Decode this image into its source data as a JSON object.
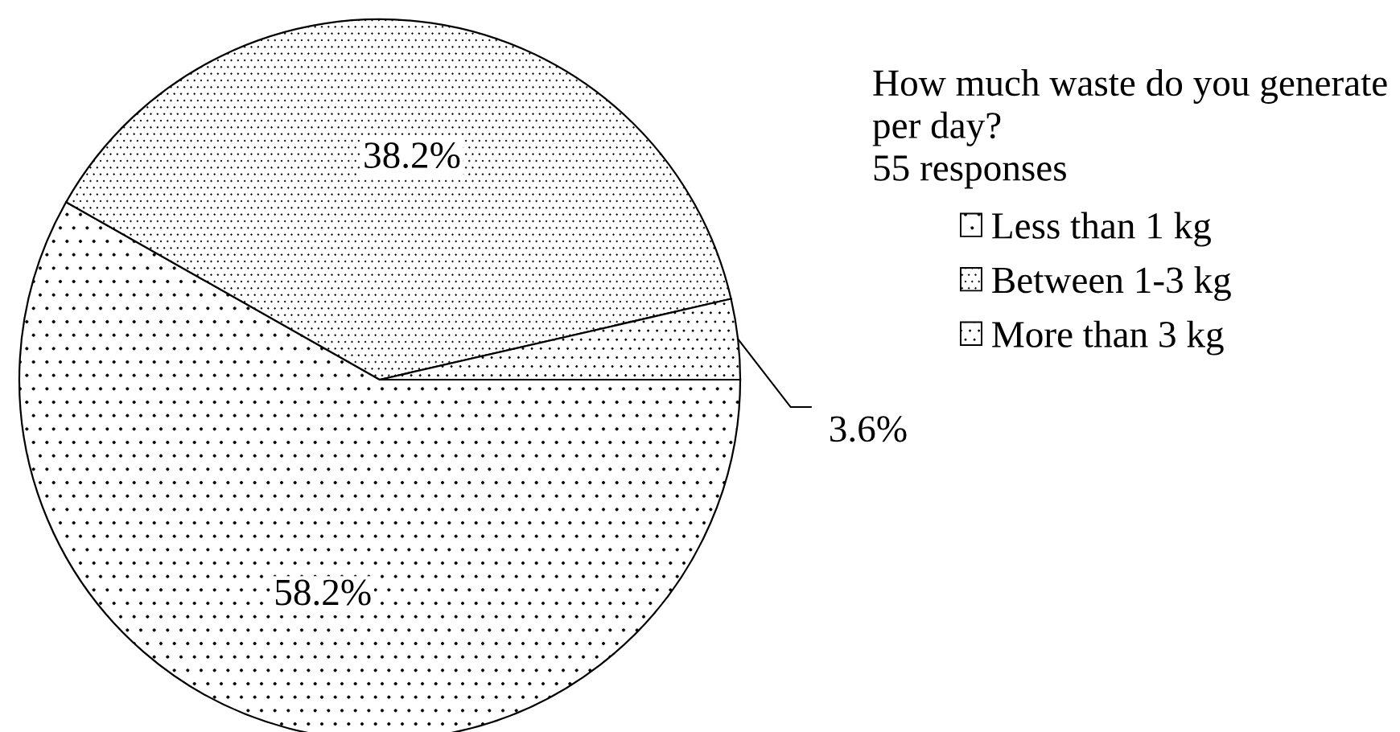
{
  "chart_data": {
    "type": "pie",
    "title": "How much waste do you generate per day?",
    "subtitle": "55 responses",
    "categories": [
      "Less than 1 kg",
      "Between 1-3 kg",
      "More than 3 kg"
    ],
    "values": [
      58.2,
      38.2,
      3.6
    ],
    "colors": [
      "#000000",
      "#000000",
      "#000000"
    ],
    "value_labels": [
      "58.2%",
      "38.2%",
      "3.6%"
    ],
    "legend": "top right"
  }
}
